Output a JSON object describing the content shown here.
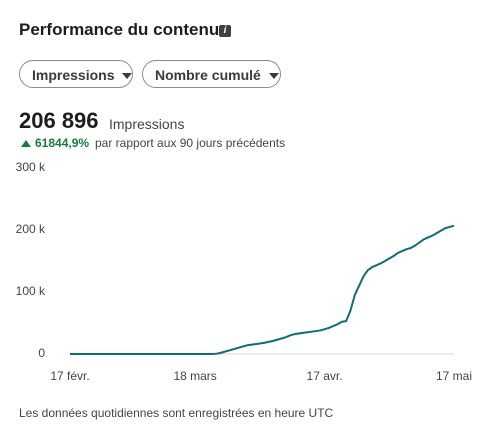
{
  "header": {
    "title": "Performance du contenu"
  },
  "filters": [
    "Impressions",
    "Nombre cumulé"
  ],
  "summary": {
    "total": "206 896",
    "metric": "Impressions",
    "change": "61844,9%",
    "comparison": "par rapport aux 90 jours précédents"
  },
  "footnote": "Les données quotidiennes sont enregistrées en heure UTC",
  "chart_data": {
    "type": "line",
    "categories": [
      "17 févr.",
      null,
      null,
      null,
      null,
      null,
      null,
      null,
      null,
      null,
      null,
      null,
      null,
      null,
      null,
      null,
      null,
      null,
      null,
      null,
      null,
      null,
      null,
      null,
      null,
      null,
      null,
      null,
      null,
      "18 mars",
      null,
      null,
      null,
      null,
      null,
      null,
      null,
      null,
      null,
      null,
      null,
      null,
      null,
      null,
      null,
      null,
      null,
      null,
      null,
      null,
      null,
      null,
      null,
      null,
      null,
      null,
      null,
      null,
      null,
      "17 avr.",
      null,
      null,
      null,
      null,
      null,
      null,
      null,
      null,
      null,
      null,
      null,
      null,
      null,
      null,
      null,
      null,
      null,
      null,
      null,
      null,
      null,
      null,
      null,
      null,
      null,
      null,
      null,
      null,
      null,
      "17 mai"
    ],
    "series": [
      {
        "name": "Impressions",
        "color": "#0e6e74",
        "values": [
          0,
          0,
          0,
          0,
          0,
          0,
          0,
          0,
          0,
          0,
          0,
          0,
          0,
          0,
          0,
          0,
          0,
          0,
          0,
          0,
          0,
          0,
          0,
          0,
          0,
          0,
          0,
          0,
          0,
          0,
          0,
          0,
          0,
          0,
          500,
          2000,
          4000,
          6000,
          8000,
          10000,
          12000,
          14000,
          15000,
          16000,
          17000,
          18000,
          19500,
          21000,
          23000,
          25000,
          27000,
          30000,
          32000,
          33000,
          34000,
          35000,
          36000,
          37000,
          38000,
          40000,
          42000,
          45000,
          48000,
          52000,
          53000,
          70000,
          95000,
          110000,
          125000,
          135000,
          140000,
          143000,
          146000,
          150000,
          154000,
          158000,
          163000,
          166000,
          169000,
          171000,
          175000,
          180000,
          185000,
          188000,
          191000,
          195000,
          199000,
          203000,
          205000,
          206896
        ]
      }
    ],
    "ylim": [
      0,
      300000
    ],
    "yticks": [
      0,
      {
        "value": 100000,
        "label": "100 k"
      },
      {
        "value": 200000,
        "label": "200 k"
      },
      {
        "value": 300000,
        "label": "300 k"
      }
    ],
    "grid": false
  }
}
